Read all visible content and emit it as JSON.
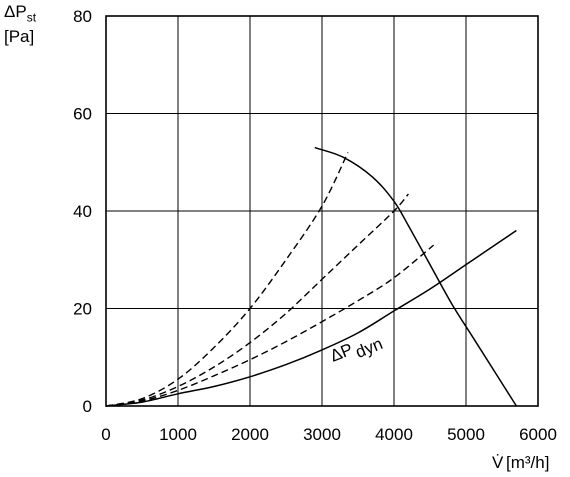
{
  "chart_data": {
    "type": "line",
    "title": "",
    "ylabel": {
      "symbol": "ΔP",
      "subscript": "st",
      "unit": "[Pa]"
    },
    "xlabel": {
      "symbol": "V̇",
      "unit": "[m³/h]"
    },
    "xlim": [
      0,
      6000
    ],
    "ylim": [
      0,
      80
    ],
    "xticks": [
      "0",
      "1000",
      "2000",
      "3000",
      "4000",
      "5000",
      "6000"
    ],
    "yticks": [
      "0",
      "20",
      "40",
      "60",
      "80"
    ],
    "grid": true,
    "annotation": {
      "text": "ΔP",
      "subscript": "dyn"
    },
    "series": [
      {
        "style": "solid",
        "x": [
          2900,
          3300,
          3700,
          4000,
          4200,
          4500,
          4800,
          5100,
          5400,
          5700
        ],
        "y": [
          53,
          51,
          47,
          42,
          37,
          29,
          21,
          14,
          7,
          0
        ]
      },
      {
        "style": "solid",
        "x": [
          0,
          500,
          1000,
          1500,
          2000,
          2500,
          3000,
          3500,
          4000,
          4500,
          5000,
          5500,
          5700
        ],
        "y": [
          0,
          0.8,
          2.5,
          4.0,
          6.0,
          8.5,
          11.5,
          15.0,
          19.5,
          24.0,
          29.0,
          34.0,
          36.0
        ]
      },
      {
        "style": "dashed",
        "x": [
          0,
          500,
          1000,
          1500,
          2000,
          2500,
          3000,
          3360
        ],
        "y": [
          0,
          1.5,
          5.5,
          12,
          20,
          30,
          41,
          52
        ]
      },
      {
        "style": "dashed",
        "x": [
          0,
          500,
          1000,
          1500,
          2000,
          2500,
          3000,
          3500,
          4000,
          4200
        ],
        "y": [
          0,
          1.2,
          4,
          8,
          13,
          19,
          26,
          33,
          40,
          43.5
        ]
      },
      {
        "style": "dashed",
        "x": [
          0,
          500,
          1000,
          1500,
          2000,
          2500,
          3000,
          3500,
          4000,
          4550
        ],
        "y": [
          0,
          1.0,
          3.2,
          6.2,
          9.5,
          13.2,
          17.3,
          21.6,
          26.3,
          33
        ]
      }
    ]
  }
}
